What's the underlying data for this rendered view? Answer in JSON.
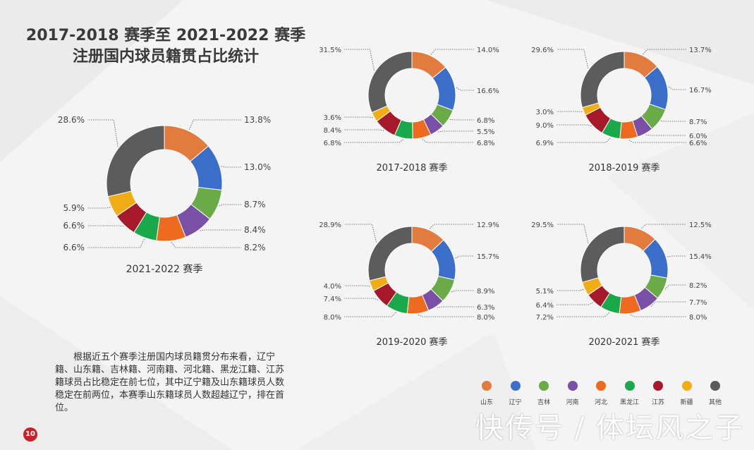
{
  "title_lines": [
    "2017-2018 赛季至 2021-2022 赛季",
    "注册国内球员籍贯占比统计"
  ],
  "description": "根据近五个赛季注册国内球员籍贯分布来看，辽宁籍、山东籍、吉林籍、河南籍、河北籍、黑龙江籍、江苏籍球员占比稳定在前七位，其中辽宁籍及山东籍球员人数稳定在前两位，本赛季山东籍球员人数超越辽宁，排在首位。",
  "page_number": "10",
  "watermark": "快传号 / 体坛风之子",
  "colors": {
    "山东": "#e27c3e",
    "辽宁": "#3a6ec8",
    "吉林": "#6aab47",
    "河南": "#7a4fa6",
    "河北": "#ee6a1e",
    "黑龙江": "#19a84a",
    "江苏": "#a5192a",
    "新疆": "#f0ad16",
    "其他": "#5c5c5c"
  },
  "chart_data": [
    {
      "type": "pie",
      "title": "2021-2022 赛季",
      "categories": [
        "山东",
        "辽宁",
        "吉林",
        "河南",
        "河北",
        "黑龙江",
        "江苏",
        "新疆",
        "其他"
      ],
      "values": [
        13.8,
        13.0,
        8.7,
        8.4,
        8.2,
        6.6,
        6.6,
        5.9,
        28.6
      ],
      "labels": [
        "13.8%",
        "13.0%",
        "8.7%",
        "8.4%",
        "8.2%",
        "6.6%",
        "6.6%",
        "5.9%",
        "28.6%"
      ],
      "legend": "bottom-right"
    },
    {
      "type": "pie",
      "title": "2017-2018 赛季",
      "categories": [
        "山东",
        "辽宁",
        "吉林",
        "河南",
        "河北",
        "黑龙江",
        "江苏",
        "新疆",
        "其他"
      ],
      "values": [
        14.0,
        16.6,
        6.8,
        5.5,
        6.8,
        6.8,
        8.4,
        3.6,
        31.5
      ],
      "labels": [
        "14.0%",
        "16.6%",
        "6.8%",
        "5.5%",
        "6.8%",
        "6.8%",
        "8.4%",
        "3.6%",
        "31.5%"
      ]
    },
    {
      "type": "pie",
      "title": "2018-2019 赛季",
      "categories": [
        "山东",
        "辽宁",
        "吉林",
        "河南",
        "河北",
        "黑龙江",
        "江苏",
        "新疆",
        "其他"
      ],
      "values": [
        13.7,
        16.7,
        8.7,
        6.0,
        6.6,
        6.9,
        9.0,
        3.0,
        29.6
      ],
      "labels": [
        "13.7%",
        "16.7%",
        "8.7%",
        "6.0%",
        "6.6%",
        "6.9%",
        "9.0%",
        "3.0%",
        "29.6%"
      ]
    },
    {
      "type": "pie",
      "title": "2019-2020 赛季",
      "categories": [
        "山东",
        "辽宁",
        "吉林",
        "河南",
        "河北",
        "黑龙江",
        "江苏",
        "新疆",
        "其他"
      ],
      "values": [
        12.9,
        15.7,
        8.9,
        6.3,
        8.0,
        8.0,
        7.4,
        4.0,
        28.9
      ],
      "labels": [
        "12.9%",
        "15.7%",
        "8.9%",
        "6.3%",
        "8.0%",
        "8.0%",
        "7.4%",
        "4.0%",
        "28.9%"
      ]
    },
    {
      "type": "pie",
      "title": "2020-2021 赛季",
      "categories": [
        "山东",
        "辽宁",
        "吉林",
        "河南",
        "河北",
        "黑龙江",
        "江苏",
        "新疆",
        "其他"
      ],
      "values": [
        12.5,
        15.4,
        8.2,
        7.7,
        8.0,
        7.2,
        6.4,
        5.1,
        29.5
      ],
      "labels": [
        "12.5%",
        "15.4%",
        "8.2%",
        "7.7%",
        "8.0%",
        "7.2%",
        "6.4%",
        "5.1%",
        "29.5%"
      ]
    }
  ],
  "legend_items": [
    "山东",
    "辽宁",
    "吉林",
    "河南",
    "河北",
    "黑龙江",
    "江苏",
    "新疆",
    "其他"
  ]
}
